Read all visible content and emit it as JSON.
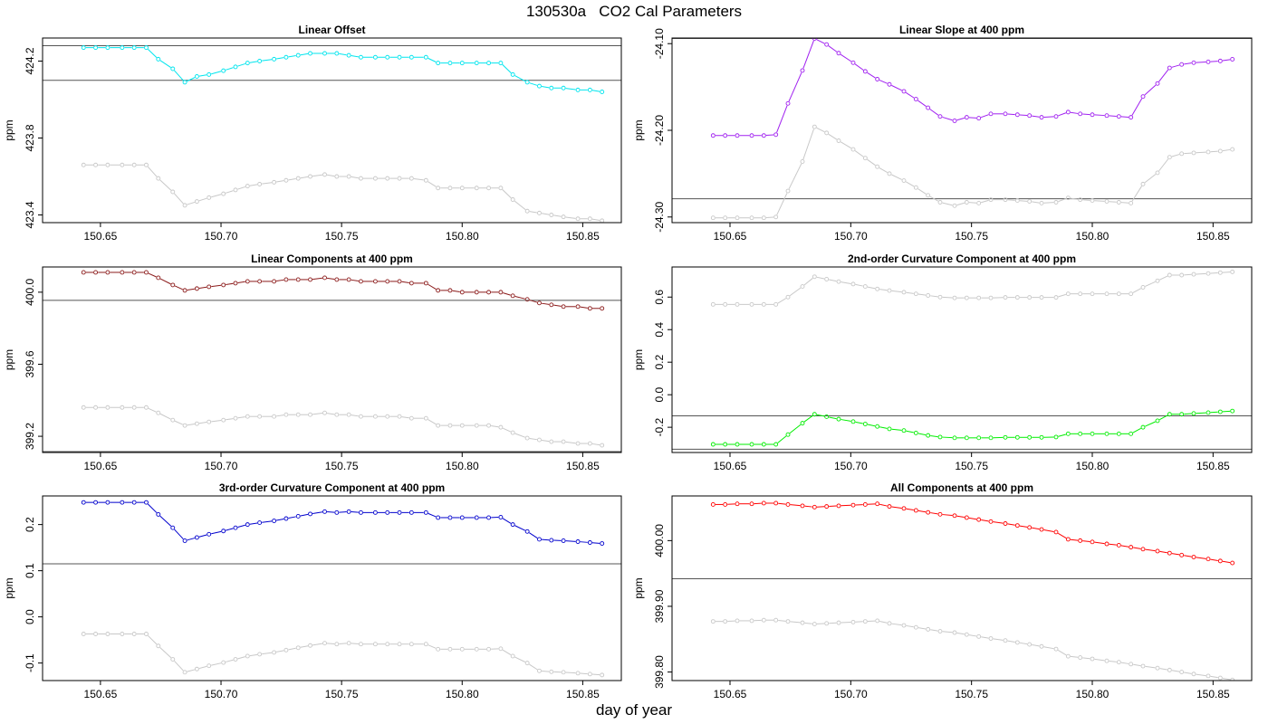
{
  "title": "130530a   CO2 Cal Parameters",
  "xlabel": "day of year",
  "colors": {
    "reference_series": "#c8c8c8",
    "reference_line": "#555555",
    "axis": "#000000"
  },
  "chart_data": [
    {
      "type": "line",
      "title": "Linear Offset",
      "ylabel": "ppm",
      "xlim": [
        150.626,
        150.866
      ],
      "ylim": [
        423.36,
        424.32
      ],
      "xticks": [
        150.65,
        150.7,
        150.75,
        150.8,
        150.85
      ],
      "xtick_labels": [
        "150.65",
        "150.70",
        "150.75",
        "150.80",
        "150.85"
      ],
      "yticks": [
        423.4,
        423.8,
        424.2
      ],
      "ytick_labels": [
        "423.4",
        "423.8",
        "424.2"
      ],
      "hlines": [
        424.28,
        424.1
      ],
      "x": [
        150.643,
        150.648,
        150.653,
        150.659,
        150.664,
        150.669,
        150.674,
        150.68,
        150.685,
        150.69,
        150.695,
        150.701,
        150.706,
        150.711,
        150.716,
        150.722,
        150.727,
        150.732,
        150.737,
        150.743,
        150.748,
        150.753,
        150.758,
        150.764,
        150.769,
        150.774,
        150.779,
        150.785,
        150.79,
        150.795,
        150.8,
        150.806,
        150.811,
        150.816,
        150.821,
        150.827,
        150.832,
        150.837,
        150.842,
        150.848,
        150.853,
        150.858
      ],
      "series": [
        {
          "color": "#00e5ee",
          "values": [
            424.27,
            424.27,
            424.27,
            424.27,
            424.27,
            424.27,
            424.21,
            424.16,
            424.09,
            424.12,
            424.13,
            424.15,
            424.17,
            424.19,
            424.2,
            424.21,
            424.22,
            424.23,
            424.24,
            424.24,
            424.24,
            424.23,
            424.22,
            424.22,
            424.22,
            424.22,
            424.22,
            424.22,
            424.19,
            424.19,
            424.19,
            424.19,
            424.19,
            424.19,
            424.13,
            424.09,
            424.07,
            424.06,
            424.06,
            424.05,
            424.05,
            424.04
          ]
        },
        {
          "color": "#c8c8c8",
          "values": [
            423.66,
            423.66,
            423.66,
            423.66,
            423.66,
            423.66,
            423.59,
            423.52,
            423.45,
            423.47,
            423.49,
            423.51,
            423.53,
            423.55,
            423.56,
            423.57,
            423.58,
            423.59,
            423.6,
            423.61,
            423.6,
            423.6,
            423.59,
            423.59,
            423.59,
            423.59,
            423.59,
            423.58,
            423.54,
            423.54,
            423.54,
            423.54,
            423.54,
            423.54,
            423.48,
            423.42,
            423.41,
            423.4,
            423.39,
            423.38,
            423.38,
            423.37
          ]
        }
      ]
    },
    {
      "type": "line",
      "title": "Linear Slope at 400 ppm",
      "ylabel": "ppm",
      "xlim": [
        150.626,
        150.866
      ],
      "ylim": [
        -24.3065,
        -24.0935
      ],
      "xticks": [
        150.65,
        150.7,
        150.75,
        150.8,
        150.85
      ],
      "xtick_labels": [
        "150.65",
        "150.70",
        "150.75",
        "150.80",
        "150.85"
      ],
      "yticks": [
        -24.3,
        -24.2,
        -24.1
      ],
      "ytick_labels": [
        "-24.30",
        "-24.20",
        "-24.10"
      ],
      "hlines": [
        -24.094,
        -24.279
      ],
      "x": [
        150.643,
        150.648,
        150.653,
        150.659,
        150.664,
        150.669,
        150.674,
        150.68,
        150.685,
        150.69,
        150.695,
        150.701,
        150.706,
        150.711,
        150.716,
        150.722,
        150.727,
        150.732,
        150.737,
        150.743,
        150.748,
        150.753,
        150.758,
        150.764,
        150.769,
        150.774,
        150.779,
        150.785,
        150.79,
        150.795,
        150.8,
        150.806,
        150.811,
        150.816,
        150.821,
        150.827,
        150.832,
        150.837,
        150.842,
        150.848,
        150.853,
        150.858
      ],
      "series": [
        {
          "color": "#a020f0",
          "values": [
            -24.206,
            -24.206,
            -24.206,
            -24.206,
            -24.206,
            -24.205,
            -24.169,
            -24.131,
            -24.094,
            -24.101,
            -24.111,
            -24.122,
            -24.132,
            -24.141,
            -24.147,
            -24.155,
            -24.164,
            -24.174,
            -24.184,
            -24.189,
            -24.185,
            -24.186,
            -24.181,
            -24.181,
            -24.182,
            -24.183,
            -24.185,
            -24.184,
            -24.179,
            -24.181,
            -24.182,
            -24.183,
            -24.184,
            -24.185,
            -24.161,
            -24.146,
            -24.128,
            -24.124,
            -24.122,
            -24.121,
            -24.12,
            -24.118
          ]
        },
        {
          "color": "#c8c8c8",
          "values": [
            -24.301,
            -24.301,
            -24.301,
            -24.301,
            -24.301,
            -24.3,
            -24.27,
            -24.236,
            -24.196,
            -24.203,
            -24.212,
            -24.222,
            -24.232,
            -24.242,
            -24.25,
            -24.258,
            -24.266,
            -24.275,
            -24.283,
            -24.287,
            -24.283,
            -24.284,
            -24.28,
            -24.28,
            -24.281,
            -24.282,
            -24.284,
            -24.283,
            -24.278,
            -24.28,
            -24.281,
            -24.282,
            -24.283,
            -24.284,
            -24.262,
            -24.249,
            -24.231,
            -24.227,
            -24.226,
            -24.225,
            -24.224,
            -24.222
          ]
        }
      ]
    },
    {
      "type": "line",
      "title": "Linear Components at 400 ppm",
      "ylabel": "ppm",
      "xlim": [
        150.626,
        150.866
      ],
      "ylim": [
        399.11,
        400.14
      ],
      "xticks": [
        150.65,
        150.7,
        150.75,
        150.8,
        150.85
      ],
      "xtick_labels": [
        "150.65",
        "150.70",
        "150.75",
        "150.80",
        "150.85"
      ],
      "yticks": [
        399.2,
        399.6,
        400.0
      ],
      "ytick_labels": [
        "399.2",
        "399.6",
        "400.0"
      ],
      "hlines": [
        399.955,
        399.115
      ],
      "x": [
        150.643,
        150.648,
        150.653,
        150.659,
        150.664,
        150.669,
        150.674,
        150.68,
        150.685,
        150.69,
        150.695,
        150.701,
        150.706,
        150.711,
        150.716,
        150.722,
        150.727,
        150.732,
        150.737,
        150.743,
        150.748,
        150.753,
        150.758,
        150.764,
        150.769,
        150.774,
        150.779,
        150.785,
        150.79,
        150.795,
        150.8,
        150.806,
        150.811,
        150.816,
        150.821,
        150.827,
        150.832,
        150.837,
        150.842,
        150.848,
        150.853,
        150.858
      ],
      "series": [
        {
          "color": "#8b1a1a",
          "values": [
            400.11,
            400.11,
            400.11,
            400.11,
            400.11,
            400.11,
            400.08,
            400.04,
            400.01,
            400.02,
            400.03,
            400.04,
            400.05,
            400.06,
            400.06,
            400.06,
            400.07,
            400.07,
            400.07,
            400.08,
            400.07,
            400.07,
            400.06,
            400.06,
            400.06,
            400.06,
            400.05,
            400.05,
            400.01,
            400.01,
            400.0,
            400.0,
            400.0,
            400.0,
            399.98,
            399.96,
            399.94,
            399.93,
            399.92,
            399.92,
            399.91,
            399.91
          ]
        },
        {
          "color": "#c8c8c8",
          "values": [
            399.36,
            399.36,
            399.36,
            399.36,
            399.36,
            399.36,
            399.33,
            399.29,
            399.26,
            399.27,
            399.28,
            399.29,
            399.3,
            399.31,
            399.31,
            399.31,
            399.32,
            399.32,
            399.32,
            399.33,
            399.32,
            399.32,
            399.31,
            399.31,
            399.31,
            399.31,
            399.3,
            399.3,
            399.26,
            399.26,
            399.26,
            399.26,
            399.26,
            399.25,
            399.22,
            399.19,
            399.18,
            399.17,
            399.17,
            399.16,
            399.16,
            399.15
          ]
        }
      ]
    },
    {
      "type": "line",
      "title": "2nd-order Curvature Component at 400 ppm",
      "ylabel": "ppm",
      "xlim": [
        150.626,
        150.866
      ],
      "ylim": [
        -0.355,
        0.785
      ],
      "xticks": [
        150.65,
        150.7,
        150.75,
        150.8,
        150.85
      ],
      "xtick_labels": [
        "150.65",
        "150.70",
        "150.75",
        "150.80",
        "150.85"
      ],
      "yticks": [
        -0.2,
        0.0,
        0.2,
        0.4,
        0.6
      ],
      "ytick_labels": [
        "-0.2",
        "0.0",
        "0.2",
        "0.4",
        "0.6"
      ],
      "hlines": [
        -0.13,
        -0.335
      ],
      "x": [
        150.643,
        150.648,
        150.653,
        150.659,
        150.664,
        150.669,
        150.674,
        150.68,
        150.685,
        150.69,
        150.695,
        150.701,
        150.706,
        150.711,
        150.716,
        150.722,
        150.727,
        150.732,
        150.737,
        150.743,
        150.748,
        150.753,
        150.758,
        150.764,
        150.769,
        150.774,
        150.779,
        150.785,
        150.79,
        150.795,
        150.8,
        150.806,
        150.811,
        150.816,
        150.821,
        150.827,
        150.832,
        150.837,
        150.842,
        150.848,
        150.853,
        150.858
      ],
      "series": [
        {
          "color": "#00ee00",
          "values": [
            -0.305,
            -0.305,
            -0.305,
            -0.305,
            -0.305,
            -0.305,
            -0.245,
            -0.175,
            -0.12,
            -0.135,
            -0.15,
            -0.165,
            -0.18,
            -0.195,
            -0.21,
            -0.22,
            -0.235,
            -0.25,
            -0.26,
            -0.265,
            -0.265,
            -0.265,
            -0.265,
            -0.262,
            -0.262,
            -0.262,
            -0.262,
            -0.26,
            -0.24,
            -0.24,
            -0.24,
            -0.24,
            -0.24,
            -0.24,
            -0.2,
            -0.16,
            -0.12,
            -0.12,
            -0.115,
            -0.11,
            -0.105,
            -0.1
          ]
        },
        {
          "color": "#c8c8c8",
          "values": [
            0.555,
            0.555,
            0.555,
            0.555,
            0.555,
            0.555,
            0.6,
            0.665,
            0.725,
            0.71,
            0.695,
            0.68,
            0.665,
            0.65,
            0.64,
            0.63,
            0.62,
            0.61,
            0.6,
            0.595,
            0.595,
            0.595,
            0.595,
            0.598,
            0.598,
            0.598,
            0.598,
            0.598,
            0.62,
            0.62,
            0.62,
            0.62,
            0.62,
            0.62,
            0.66,
            0.7,
            0.735,
            0.735,
            0.74,
            0.745,
            0.75,
            0.755
          ]
        }
      ]
    },
    {
      "type": "line",
      "title": "3rd-order Curvature Component at 400 ppm",
      "ylabel": "ppm",
      "xlim": [
        150.626,
        150.866
      ],
      "ylim": [
        -0.138,
        0.262
      ],
      "xticks": [
        150.65,
        150.7,
        150.75,
        150.8,
        150.85
      ],
      "xtick_labels": [
        "150.65",
        "150.70",
        "150.75",
        "150.80",
        "150.85"
      ],
      "yticks": [
        -0.1,
        0.0,
        0.1,
        0.2
      ],
      "ytick_labels": [
        "-0.1",
        "0.0",
        "0.1",
        "0.2"
      ],
      "hlines": [
        0.115
      ],
      "x": [
        150.643,
        150.648,
        150.653,
        150.659,
        150.664,
        150.669,
        150.674,
        150.68,
        150.685,
        150.69,
        150.695,
        150.701,
        150.706,
        150.711,
        150.716,
        150.722,
        150.727,
        150.732,
        150.737,
        150.743,
        150.748,
        150.753,
        150.758,
        150.764,
        150.769,
        150.774,
        150.779,
        150.785,
        150.79,
        150.795,
        150.8,
        150.806,
        150.811,
        150.816,
        150.821,
        150.827,
        150.832,
        150.837,
        150.842,
        150.848,
        150.853,
        150.858
      ],
      "series": [
        {
          "color": "#0000cd",
          "values": [
            0.248,
            0.248,
            0.248,
            0.248,
            0.248,
            0.248,
            0.222,
            0.193,
            0.165,
            0.172,
            0.179,
            0.186,
            0.193,
            0.2,
            0.204,
            0.208,
            0.213,
            0.218,
            0.223,
            0.228,
            0.226,
            0.228,
            0.226,
            0.226,
            0.226,
            0.226,
            0.226,
            0.226,
            0.215,
            0.215,
            0.215,
            0.215,
            0.215,
            0.216,
            0.2,
            0.185,
            0.168,
            0.166,
            0.165,
            0.163,
            0.161,
            0.159
          ]
        },
        {
          "color": "#c8c8c8",
          "values": [
            -0.037,
            -0.037,
            -0.037,
            -0.037,
            -0.037,
            -0.037,
            -0.063,
            -0.092,
            -0.12,
            -0.113,
            -0.106,
            -0.099,
            -0.092,
            -0.085,
            -0.081,
            -0.077,
            -0.072,
            -0.067,
            -0.062,
            -0.057,
            -0.059,
            -0.057,
            -0.059,
            -0.059,
            -0.059,
            -0.059,
            -0.059,
            -0.059,
            -0.07,
            -0.07,
            -0.07,
            -0.07,
            -0.07,
            -0.069,
            -0.085,
            -0.1,
            -0.117,
            -0.119,
            -0.12,
            -0.122,
            -0.124,
            -0.126
          ]
        }
      ]
    },
    {
      "type": "line",
      "title": "All Components at 400 ppm",
      "ylabel": "ppm",
      "xlim": [
        150.626,
        150.866
      ],
      "ylim": [
        399.787,
        400.068
      ],
      "xticks": [
        150.65,
        150.7,
        150.75,
        150.8,
        150.85
      ],
      "xtick_labels": [
        "150.65",
        "150.70",
        "150.75",
        "150.80",
        "150.85"
      ],
      "yticks": [
        399.8,
        399.9,
        400.0
      ],
      "ytick_labels": [
        "399.80",
        "399.90",
        "400.00"
      ],
      "hlines": [
        399.942
      ],
      "x": [
        150.643,
        150.648,
        150.653,
        150.659,
        150.664,
        150.669,
        150.674,
        150.68,
        150.685,
        150.69,
        150.695,
        150.701,
        150.706,
        150.711,
        150.716,
        150.722,
        150.727,
        150.732,
        150.737,
        150.743,
        150.748,
        150.753,
        150.758,
        150.764,
        150.769,
        150.774,
        150.779,
        150.785,
        150.79,
        150.795,
        150.8,
        150.806,
        150.811,
        150.816,
        150.821,
        150.827,
        150.832,
        150.837,
        150.842,
        150.848,
        150.853,
        150.858
      ],
      "series": [
        {
          "color": "#ff0000",
          "values": [
            400.055,
            400.055,
            400.056,
            400.056,
            400.057,
            400.057,
            400.055,
            400.053,
            400.051,
            400.052,
            400.053,
            400.054,
            400.055,
            400.056,
            400.052,
            400.049,
            400.046,
            400.043,
            400.04,
            400.038,
            400.035,
            400.032,
            400.029,
            400.026,
            400.023,
            400.02,
            400.017,
            400.013,
            400.002,
            400.0,
            399.998,
            399.995,
            399.993,
            399.99,
            399.987,
            399.984,
            399.981,
            399.978,
            399.975,
            399.972,
            399.969,
            399.966
          ]
        },
        {
          "color": "#c8c8c8",
          "values": [
            399.877,
            399.877,
            399.878,
            399.878,
            399.879,
            399.879,
            399.877,
            399.875,
            399.873,
            399.874,
            399.875,
            399.876,
            399.877,
            399.878,
            399.874,
            399.871,
            399.868,
            399.865,
            399.862,
            399.86,
            399.857,
            399.854,
            399.851,
            399.848,
            399.845,
            399.842,
            399.839,
            399.835,
            399.824,
            399.822,
            399.82,
            399.817,
            399.815,
            399.812,
            399.809,
            399.806,
            399.803,
            399.8,
            399.797,
            399.794,
            399.791,
            399.788
          ]
        }
      ]
    }
  ]
}
